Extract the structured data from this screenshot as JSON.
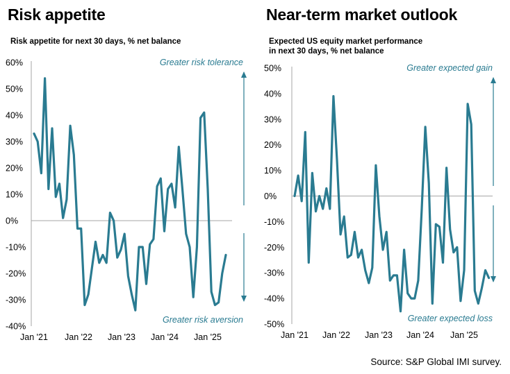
{
  "source": "Source: S&P Global IMI survey.",
  "chart_data": [
    {
      "type": "line",
      "title": "Risk appetite",
      "subtitle": "Risk appetite for next 30 days, % net balance",
      "x_tick_labels": [
        "Jan '21",
        "Jan '22",
        "Jan '23",
        "Jan '24",
        "Jan '25"
      ],
      "y_tick_labels": [
        "60%",
        "50%",
        "40%",
        "30%",
        "20%",
        "10%",
        "0%",
        "-10%",
        "-20%",
        "-30%",
        "-40%"
      ],
      "ylim": [
        -40,
        60
      ],
      "x_start": "2021-01",
      "arrow_top_label": "Greater risk tolerance",
      "arrow_bottom_label": "Greater risk aversion",
      "line_color": "#2a7b91",
      "series": [
        {
          "values": [
            33,
            30,
            18,
            54,
            12,
            35,
            9,
            14,
            1,
            8,
            36,
            25,
            -3,
            -3,
            -32,
            -28,
            -18,
            -8,
            -16,
            -13,
            -16,
            3,
            0,
            -14,
            -11,
            -5,
            -21,
            -28,
            -34,
            -10,
            -10,
            -24,
            -9,
            -7,
            13,
            16,
            -4,
            12,
            14,
            5,
            28,
            12,
            -5,
            -10,
            -29,
            -10,
            39,
            41,
            12,
            -27,
            -32,
            -31,
            -20,
            -13
          ]
        }
      ]
    },
    {
      "type": "line",
      "title": "Near-term market outlook",
      "subtitle": "Expected US equity market performance in next 30 days, % net balance",
      "subtitle_lines": [
        "Expected US equity market performance",
        "in next 30 days, % net balance"
      ],
      "x_tick_labels": [
        "Jan '21",
        "Jan '22",
        "Jan '23",
        "Jan '24",
        "Jan '25"
      ],
      "y_tick_labels": [
        "50%",
        "40%",
        "30%",
        "20%",
        "10%",
        "0%",
        "-10%",
        "-20%",
        "-30%",
        "-40%",
        "-50%"
      ],
      "ylim": [
        -50,
        50
      ],
      "x_start": "2021-01",
      "arrow_top_label": "Greater expected gain",
      "arrow_bottom_label": "Greater  expected loss",
      "line_color": "#2a7b91",
      "series": [
        {
          "values": [
            0,
            8,
            -2,
            25,
            -26,
            9,
            -6,
            0,
            -5,
            3,
            -5,
            39,
            14,
            -15,
            -8,
            -24,
            -23,
            -14,
            -24,
            -21,
            -29,
            -34,
            -28,
            12,
            -8,
            -21,
            -14,
            -33,
            -31,
            -31,
            -45,
            -21,
            -38,
            -40,
            -40,
            -33,
            -5,
            27,
            5,
            -42,
            -11,
            -12,
            -26,
            11,
            -13,
            -22,
            -20,
            -41,
            -29,
            36,
            28,
            -37,
            -42,
            -36,
            -29,
            -32
          ]
        }
      ]
    }
  ]
}
